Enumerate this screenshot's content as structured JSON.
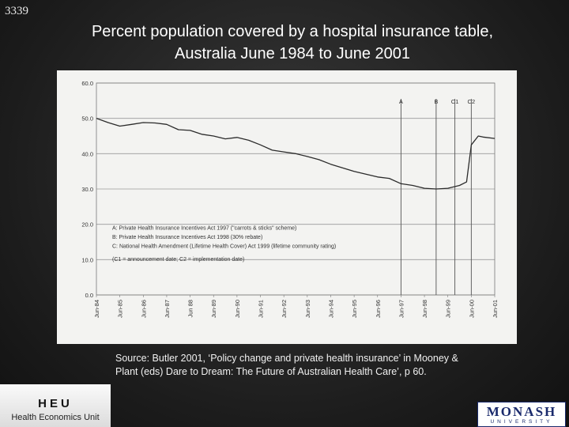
{
  "slide_number": "3339",
  "title_line1": "Percent population covered by a hospital insurance table,",
  "title_line2": "Australia June 1984 to June 2001",
  "source_text": "Source: Butler 2001, ‘Policy change and private health insurance’ in Mooney & Plant (eds) Dare to Dream: The Future of Australian Health Care’, p 60.",
  "logo_heu": {
    "mark": "HEU",
    "name": "Health Economics Unit"
  },
  "logo_monash": {
    "top": "MONASH",
    "bottom": "UNIVERSITY"
  },
  "chart_data": {
    "type": "line",
    "ylim": [
      0,
      60
    ],
    "yticks": [
      "0.0",
      "10.0",
      "20.0",
      "30.0",
      "40.0",
      "50.0",
      "60.0"
    ],
    "xlim": [
      1984.5,
      2001.5
    ],
    "xtick_labels": [
      "Jun-84",
      "Jun-85",
      "Jun-86",
      "Jun-87",
      "Jun 88",
      "Jun-89",
      "Jun-90",
      "Jun-91",
      "Jun-92",
      "Jun-93",
      "Jun-94",
      "Jun-95",
      "Jun-96",
      "Jun-97",
      "Jun-98",
      "Jun-99",
      "Jun-00",
      "Jun-01"
    ],
    "grid": true,
    "series": [
      {
        "values": [
          [
            1984.5,
            50.0
          ],
          [
            1985.0,
            48.8
          ],
          [
            1985.5,
            47.8
          ],
          [
            1986.0,
            48.3
          ],
          [
            1986.5,
            48.8
          ],
          [
            1987.0,
            48.7
          ],
          [
            1987.5,
            48.3
          ],
          [
            1988.0,
            46.8
          ],
          [
            1988.5,
            46.6
          ],
          [
            1989.0,
            45.5
          ],
          [
            1989.5,
            45.0
          ],
          [
            1990.0,
            44.2
          ],
          [
            1990.5,
            44.6
          ],
          [
            1991.0,
            43.8
          ],
          [
            1991.5,
            42.5
          ],
          [
            1992.0,
            41.0
          ],
          [
            1992.5,
            40.5
          ],
          [
            1993.0,
            40.0
          ],
          [
            1993.5,
            39.2
          ],
          [
            1994.0,
            38.3
          ],
          [
            1994.5,
            37.0
          ],
          [
            1995.0,
            36.0
          ],
          [
            1995.5,
            35.0
          ],
          [
            1996.0,
            34.2
          ],
          [
            1996.5,
            33.4
          ],
          [
            1997.0,
            33.0
          ],
          [
            1997.5,
            31.5
          ],
          [
            1998.0,
            31.0
          ],
          [
            1998.5,
            30.2
          ],
          [
            1999.0,
            30.0
          ],
          [
            1999.5,
            30.2
          ],
          [
            2000.0,
            31.0
          ],
          [
            2000.3,
            32.0
          ],
          [
            2000.5,
            42.5
          ],
          [
            2000.8,
            45.0
          ],
          [
            2001.0,
            44.7
          ],
          [
            2001.5,
            44.3
          ]
        ]
      }
    ],
    "markers": [
      {
        "label": "A",
        "x": 1997.5
      },
      {
        "label": "B",
        "x": 1999.0
      },
      {
        "label": "C1",
        "x": 1999.8
      },
      {
        "label": "C2",
        "x": 2000.5
      }
    ],
    "annotations": [
      "A:  Private Health Insurance Incentives Act 1997 (\"carrots & sticks\" scheme)",
      "B:  Private Health Insurance Incentives Act 1998 (30% rebate)",
      "C:  National Health Amendment (Lifetime Health Cover) Act 1999 (lifetime community rating)",
      "(C1 = announcement date;  C2 = implementation date)"
    ],
    "colors": {
      "line": "#2b2b2b",
      "grid": "#9a9a9a",
      "text": "#333333"
    }
  }
}
